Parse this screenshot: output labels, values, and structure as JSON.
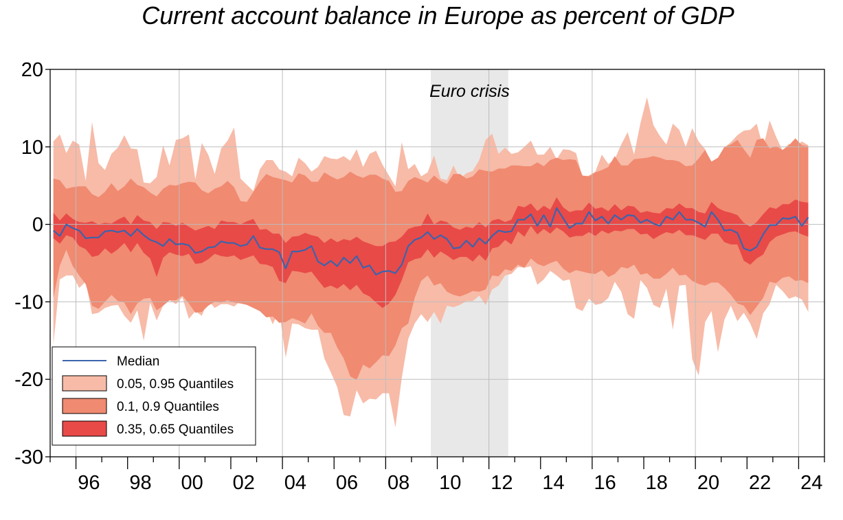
{
  "title": "Current account balance in Europe as percent of GDP",
  "chart_data": {
    "type": "area",
    "title": "Current account balance in Europe as percent of GDP",
    "xlabel": "",
    "ylabel": "",
    "frequency": "quarterly",
    "x_start": "1995Q1",
    "xlim": [
      "1995Q1",
      "2024Q4"
    ],
    "ylim": [
      -30,
      20
    ],
    "y_ticks": [
      20,
      10,
      0,
      -10,
      -20,
      -30
    ],
    "x_tick_labels": [
      "96",
      "98",
      "00",
      "02",
      "04",
      "06",
      "08",
      "10",
      "12",
      "14",
      "16",
      "18",
      "20",
      "22",
      "24"
    ],
    "x_tick_years": [
      1996,
      1998,
      2000,
      2002,
      2004,
      2006,
      2008,
      2010,
      2012,
      2014,
      2016,
      2018,
      2020,
      2022,
      2024
    ],
    "grid": true,
    "legend_position": "bottom-left",
    "shaded_region": {
      "label": "Euro crisis",
      "start": "2009Q4",
      "end": "2012Q3",
      "color": "#e8e8e8"
    },
    "colors": {
      "q05_95": "#f7bba8",
      "q10_90": "#f08a70",
      "q35_65": "#e84a48",
      "median": "#3b64ad"
    },
    "legend": [
      {
        "label": "Median",
        "kind": "line",
        "color": "#3b64ad"
      },
      {
        "label": "0.05, 0.95 Quantiles",
        "kind": "band",
        "color": "#f7bba8"
      },
      {
        "label": "0.1, 0.9 Quantiles",
        "kind": "band",
        "color": "#f08a70"
      },
      {
        "label": "0.35, 0.65 Quantiles",
        "kind": "band",
        "color": "#e84a48"
      }
    ],
    "series": [
      {
        "name": "Median",
        "values": [
          -0.8,
          -1.5,
          0.0,
          -0.5,
          -0.8,
          -1.8,
          -1.7,
          -1.7,
          -0.9,
          -0.8,
          -1.0,
          -0.8,
          -1.5,
          -0.6,
          -1.4,
          -2.0,
          -2.3,
          -2.8,
          -1.9,
          -2.6,
          -2.5,
          -2.7,
          -3.7,
          -3.5,
          -3.0,
          -2.9,
          -2.2,
          -2.4,
          -2.4,
          -2.8,
          -2.6,
          -1.5,
          -3.0,
          -3.2,
          -3.2,
          -3.6,
          -5.7,
          -3.5,
          -3.5,
          -3.3,
          -2.8,
          -4.8,
          -5.3,
          -4.7,
          -5.4,
          -4.3,
          -5.0,
          -4.1,
          -5.6,
          -5.3,
          -6.5,
          -6.1,
          -6.0,
          -6.3,
          -5.2,
          -2.8,
          -2.0,
          -1.7,
          -1.0,
          -1.9,
          -1.4,
          -1.9,
          -3.1,
          -3.0,
          -2.1,
          -2.9,
          -1.8,
          -2.5,
          -1.5,
          -0.8,
          -1.0,
          -0.9,
          0.6,
          0.6,
          1.3,
          -0.2,
          1.2,
          -0.3,
          2.1,
          0.8,
          -0.5,
          0.1,
          0.1,
          1.6,
          0.5,
          1.0,
          0.1,
          1.2,
          0.6,
          1.2,
          1.1,
          0.2,
          0.6,
          0.1,
          -0.2,
          1.0,
          0.6,
          1.6,
          0.6,
          0.6,
          0.2,
          -0.3,
          1.6,
          0.6,
          -0.8,
          -0.7,
          -1.1,
          -3.1,
          -3.4,
          -2.9,
          -1.3,
          -0.1,
          -0.1,
          0.8,
          0.7,
          1.0,
          -0.2,
          0.9
        ]
      },
      {
        "name": "0.35 Quantile",
        "values": [
          -1.8,
          -2.5,
          -1.4,
          -1.7,
          -2.8,
          -3.2,
          -4.2,
          -4.0,
          -3.1,
          -3.8,
          -3.2,
          -2.4,
          -3.6,
          -2.4,
          -3.7,
          -4.4,
          -6.8,
          -4.3,
          -3.6,
          -3.9,
          -4.1,
          -3.8,
          -5.1,
          -5.0,
          -4.5,
          -3.8,
          -4.1,
          -4.2,
          -4.0,
          -4.6,
          -4.3,
          -4.0,
          -5.1,
          -5.2,
          -5.5,
          -7.3,
          -7.6,
          -6.0,
          -6.1,
          -6.3,
          -6.1,
          -7.2,
          -8.2,
          -7.9,
          -8.3,
          -7.7,
          -8.5,
          -7.8,
          -8.9,
          -9.3,
          -10.1,
          -10.8,
          -10.2,
          -9.1,
          -7.2,
          -4.9,
          -4.5,
          -4.3,
          -3.2,
          -4.3,
          -3.5,
          -4.0,
          -4.6,
          -4.2,
          -4.2,
          -4.8,
          -3.9,
          -4.7,
          -3.1,
          -2.9,
          -2.0,
          -2.6,
          -0.9,
          -1.6,
          -0.2,
          -1.3,
          -0.6,
          -1.2,
          -0.4,
          -0.9,
          -1.7,
          -1.5,
          -1.5,
          -1.0,
          -1.5,
          -0.8,
          -1.2,
          -0.8,
          -0.9,
          -0.6,
          -0.6,
          -1.3,
          -1.2,
          -1.9,
          -1.4,
          -1.0,
          -1.2,
          -0.7,
          -1.4,
          -1.4,
          -1.7,
          -2.0,
          -1.2,
          -1.2,
          -2.3,
          -2.6,
          -2.6,
          -4.7,
          -5.2,
          -4.4,
          -3.9,
          -2.3,
          -1.6,
          -1.3,
          -1.0,
          -0.9,
          -1.3,
          -1.6
        ]
      },
      {
        "name": "0.65 Quantile",
        "values": [
          1.5,
          0.5,
          1.4,
          0.7,
          0.3,
          0.2,
          0.4,
          0.0,
          0.2,
          0.1,
          0.6,
          1.0,
          0.0,
          1.2,
          0.5,
          0.3,
          -0.6,
          0.3,
          0.2,
          -0.2,
          0.2,
          -0.3,
          -0.8,
          -0.5,
          -0.2,
          -0.6,
          0.5,
          0.3,
          0.3,
          0.0,
          0.4,
          0.7,
          -0.7,
          -0.6,
          -1.2,
          -1.2,
          -2.4,
          -1.6,
          -1.5,
          -1.1,
          -1.4,
          -1.6,
          -2.4,
          -1.8,
          -2.3,
          -1.9,
          -2.1,
          -1.6,
          -2.2,
          -2.5,
          -2.8,
          -2.8,
          -2.3,
          -2.2,
          -1.6,
          -0.6,
          -0.3,
          -0.2,
          1.4,
          0.0,
          0.5,
          0.3,
          -0.4,
          -0.7,
          -0.3,
          -0.5,
          0.3,
          -0.4,
          0.5,
          0.7,
          0.3,
          0.6,
          2.4,
          2.2,
          2.7,
          1.7,
          2.4,
          1.9,
          3.5,
          2.2,
          1.6,
          1.8,
          1.8,
          2.8,
          2.0,
          2.2,
          1.7,
          2.6,
          1.8,
          2.4,
          2.3,
          1.5,
          1.7,
          1.5,
          1.4,
          2.1,
          2.0,
          2.7,
          2.1,
          2.1,
          1.6,
          1.4,
          2.9,
          2.1,
          1.7,
          1.5,
          1.2,
          0.2,
          -0.3,
          0.3,
          1.3,
          2.2,
          2.0,
          2.6,
          2.6,
          3.2,
          2.9,
          2.8
        ]
      },
      {
        "name": "0.1 Quantile",
        "values": [
          -9.5,
          -5.3,
          -3.3,
          -5.4,
          -6.6,
          -7.7,
          -10.5,
          -10.9,
          -10.0,
          -9.1,
          -9.9,
          -10.1,
          -11.6,
          -10.2,
          -9.6,
          -9.5,
          -11.1,
          -10.5,
          -9.8,
          -9.8,
          -9.2,
          -10.2,
          -11.4,
          -11.3,
          -10.5,
          -10.0,
          -10.1,
          -9.8,
          -10.1,
          -10.2,
          -10.4,
          -10.8,
          -11.2,
          -12.0,
          -11.9,
          -12.7,
          -12.6,
          -12.1,
          -12.4,
          -12.8,
          -11.5,
          -13.1,
          -14.0,
          -14.0,
          -15.9,
          -17.3,
          -19.6,
          -20.1,
          -18.1,
          -18.6,
          -17.8,
          -16.9,
          -17.0,
          -15.6,
          -13.4,
          -12.8,
          -9.5,
          -7.3,
          -6.6,
          -7.9,
          -7.6,
          -8.7,
          -9.1,
          -9.3,
          -9.0,
          -8.6,
          -8.7,
          -8.4,
          -6.6,
          -6.7,
          -5.8,
          -6.0,
          -5.2,
          -5.6,
          -4.4,
          -5.1,
          -5.4,
          -5.0,
          -4.7,
          -5.7,
          -6.3,
          -5.9,
          -6.1,
          -6.3,
          -6.4,
          -5.9,
          -6.8,
          -6.4,
          -5.5,
          -5.7,
          -5.2,
          -6.5,
          -6.3,
          -7.0,
          -7.0,
          -6.4,
          -5.6,
          -6.6,
          -6.5,
          -7.3,
          -7.7,
          -7.9,
          -7.5,
          -7.5,
          -8.2,
          -9.1,
          -10.2,
          -10.5,
          -11.7,
          -10.6,
          -9.5,
          -7.4,
          -7.6,
          -6.9,
          -6.7,
          -7.3,
          -7.2,
          -7.6
        ]
      },
      {
        "name": "0.9 Quantile",
        "values": [
          5.9,
          5.7,
          4.6,
          4.8,
          4.9,
          4.9,
          3.9,
          3.5,
          4.2,
          5.3,
          4.3,
          4.9,
          5.9,
          5.1,
          4.8,
          4.1,
          3.6,
          4.6,
          5.1,
          5.0,
          5.3,
          5.5,
          5.4,
          4.4,
          4.0,
          4.6,
          4.9,
          5.6,
          4.8,
          3.0,
          2.9,
          4.2,
          5.5,
          6.5,
          6.1,
          5.9,
          5.7,
          5.4,
          6.6,
          6.3,
          5.5,
          5.5,
          6.7,
          6.2,
          5.8,
          6.1,
          6.8,
          6.3,
          6.0,
          6.4,
          6.4,
          5.9,
          5.6,
          4.2,
          4.3,
          5.6,
          6.1,
          5.8,
          5.4,
          6.3,
          5.6,
          5.2,
          6.5,
          6.5,
          5.9,
          6.2,
          7.1,
          6.9,
          6.8,
          7.2,
          7.2,
          7.6,
          7.6,
          7.5,
          7.5,
          8.0,
          7.5,
          8.3,
          8.6,
          8.3,
          8.4,
          8.3,
          6.3,
          6.2,
          6.7,
          7.0,
          7.4,
          8.8,
          7.6,
          7.6,
          8.4,
          8.5,
          8.6,
          8.8,
          8.6,
          8.3,
          8.3,
          8.1,
          7.5,
          7.6,
          8.5,
          9.6,
          8.1,
          8.6,
          10.0,
          10.3,
          10.9,
          9.7,
          8.6,
          10.9,
          11.1,
          9.8,
          10.1,
          9.6,
          10.2,
          11.1,
          10.2,
          10.1
        ]
      },
      {
        "name": "0.05 Quantile",
        "values": [
          -15.5,
          -7.1,
          -6.6,
          -6.6,
          -8.2,
          -7.4,
          -11.6,
          -11.4,
          -10.8,
          -10.5,
          -10.4,
          -11.8,
          -12.7,
          -11.1,
          -15.0,
          -10.1,
          -12.4,
          -10.5,
          -9.8,
          -10.3,
          -9.4,
          -12.2,
          -11.2,
          -11.8,
          -9.8,
          -10.8,
          -10.3,
          -10.3,
          -10.6,
          -9.9,
          -9.5,
          -10.3,
          -10.7,
          -11.0,
          -12.9,
          -11.1,
          -17.2,
          -12.8,
          -12.9,
          -13.4,
          -13.6,
          -13.6,
          -17.3,
          -19.1,
          -21.0,
          -24.6,
          -24.8,
          -21.4,
          -23.1,
          -22.5,
          -22.6,
          -21.8,
          -21.8,
          -26.2,
          -19.8,
          -14.8,
          -12.8,
          -11.6,
          -12.6,
          -11.3,
          -12.8,
          -10.5,
          -10.7,
          -10.4,
          -9.9,
          -9.9,
          -9.2,
          -10.4,
          -8.4,
          -7.9,
          -6.6,
          -6.4,
          -5.5,
          -5.6,
          -5.4,
          -7.8,
          -7.1,
          -6.0,
          -6.6,
          -7.3,
          -7.1,
          -10.8,
          -11.2,
          -9.6,
          -10.4,
          -10.2,
          -9.5,
          -7.4,
          -8.7,
          -11.6,
          -12.2,
          -7.2,
          -8.2,
          -10.4,
          -10.8,
          -8.3,
          -13.6,
          -7.9,
          -7.8,
          -17.4,
          -19.5,
          -12.6,
          -11.2,
          -16.5,
          -12.3,
          -10.5,
          -12.5,
          -11.4,
          -12.8,
          -14.8,
          -11.5,
          -10.3,
          -7.8,
          -8.6,
          -9.6,
          -9.3,
          -9.7,
          -11.3
        ]
      },
      {
        "name": "0.95 Quantile",
        "values": [
          10.7,
          11.6,
          9.2,
          10.8,
          10.3,
          5.6,
          13.2,
          7.9,
          7.0,
          9.1,
          9.9,
          11.5,
          9.8,
          9.7,
          5.4,
          5.3,
          6.1,
          10.2,
          7.6,
          10.9,
          11.1,
          11.6,
          5.8,
          10.5,
          9.0,
          6.5,
          9.8,
          10.8,
          12.5,
          5.9,
          5.1,
          4.3,
          7.1,
          8.3,
          8.3,
          7.1,
          6.8,
          6.2,
          8.6,
          7.9,
          6.8,
          7.4,
          8.8,
          8.5,
          8.4,
          8.8,
          8.2,
          9.7,
          7.4,
          9.1,
          9.5,
          7.7,
          6.3,
          4.9,
          10.6,
          7.1,
          7.8,
          6.2,
          6.7,
          8.9,
          5.9,
          5.7,
          7.6,
          5.9,
          6.6,
          6.9,
          8.3,
          10.9,
          11.7,
          9.1,
          9.9,
          9.1,
          9.3,
          10.0,
          10.8,
          9.0,
          9.0,
          10.0,
          8.4,
          9.7,
          9.6,
          9.2,
          6.1,
          6.3,
          6.8,
          9.0,
          7.8,
          8.4,
          10.3,
          11.9,
          9.0,
          13.1,
          16.4,
          12.8,
          11.4,
          10.3,
          13.0,
          12.2,
          10.0,
          12.4,
          10.7,
          9.7,
          7.8,
          7.7,
          9.9,
          10.6,
          11.5,
          12.1,
          12.2,
          13.0,
          9.9,
          13.4,
          11.3,
          9.5,
          10.4,
          10.0,
          10.7,
          10.2
        ]
      }
    ]
  }
}
